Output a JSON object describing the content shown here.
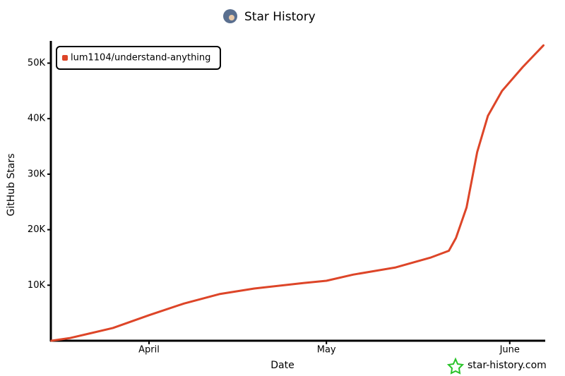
{
  "chart_data": {
    "type": "line",
    "title": "Star History",
    "xlabel": "Date",
    "ylabel": "GitHub Stars",
    "watermark": "star-history.com",
    "x": [
      74.5,
      77.7,
      84.9,
      91,
      96.9,
      102.9,
      108.8,
      117.2,
      121,
      125.5,
      132.7,
      138.7,
      141.7,
      142.9,
      144.7,
      146.5,
      148.3,
      150.7,
      154.2,
      157.7
    ],
    "series": [
      {
        "name": "lum1104/understand-anything",
        "color": "#dd4528",
        "values": [
          0,
          500,
          2300,
          4600,
          6700,
          8400,
          9400,
          10400,
          10800,
          11900,
          13200,
          15000,
          16200,
          18500,
          24000,
          34000,
          40500,
          45000,
          49300,
          53200
        ]
      }
    ],
    "xlim": [
      74.4,
      158
    ],
    "xticks": [
      {
        "value": 91,
        "label": "April"
      },
      {
        "value": 121,
        "label": "May"
      },
      {
        "value": 152,
        "label": "June"
      }
    ],
    "ylim": [
      0,
      54000
    ],
    "yticks": [
      {
        "value": 10000,
        "label": "10K"
      },
      {
        "value": 20000,
        "label": "20K"
      },
      {
        "value": 30000,
        "label": "30K"
      },
      {
        "value": 40000,
        "label": "40K"
      },
      {
        "value": 50000,
        "label": "50K"
      }
    ],
    "grid": false,
    "legend": "upper left"
  }
}
